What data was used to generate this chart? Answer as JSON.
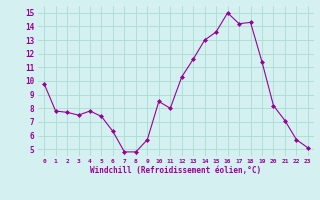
{
  "hours": [
    0,
    1,
    2,
    3,
    4,
    5,
    6,
    7,
    8,
    9,
    10,
    11,
    12,
    13,
    14,
    15,
    16,
    17,
    18,
    19,
    20,
    21,
    22,
    23
  ],
  "values": [
    9.8,
    7.8,
    7.7,
    7.5,
    7.8,
    7.4,
    6.3,
    4.8,
    4.8,
    5.7,
    8.5,
    8.0,
    10.3,
    11.6,
    13.0,
    13.6,
    15.0,
    14.2,
    14.3,
    11.4,
    8.2,
    7.1,
    5.7,
    5.1
  ],
  "line_color": "#990099",
  "marker": "D",
  "marker_size": 2.0,
  "bg_color": "#d4f0f0",
  "grid_color": "#aaddcc",
  "xlabel": "Windchill (Refroidissement éolien,°C)",
  "xlabel_color": "#990099",
  "tick_color": "#990099",
  "ylim": [
    4.5,
    15.5
  ],
  "yticks": [
    5,
    6,
    7,
    8,
    9,
    10,
    11,
    12,
    13,
    14,
    15
  ],
  "xlim": [
    -0.5,
    23.5
  ],
  "xticks": [
    0,
    1,
    2,
    3,
    4,
    5,
    6,
    7,
    8,
    9,
    10,
    11,
    12,
    13,
    14,
    15,
    16,
    17,
    18,
    19,
    20,
    21,
    22,
    23
  ]
}
